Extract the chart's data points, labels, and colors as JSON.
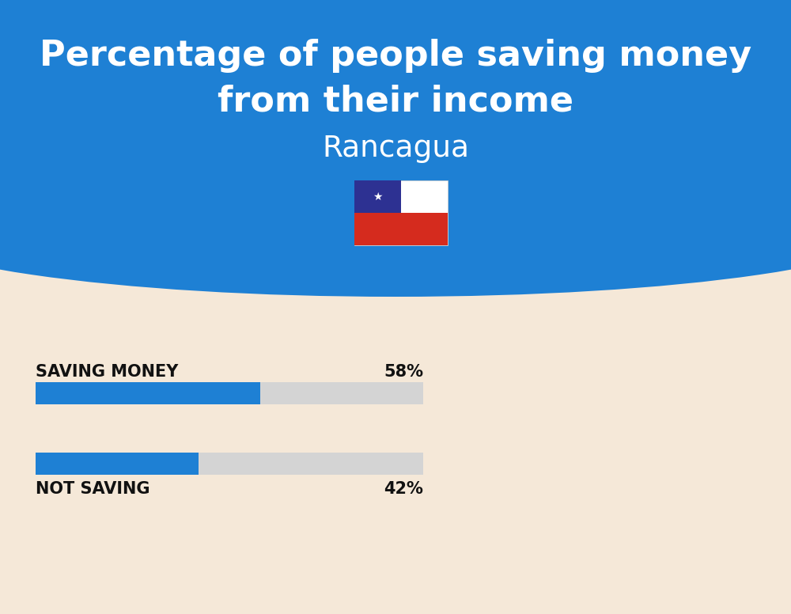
{
  "title_line1": "Percentage of people saving money",
  "title_line2": "from their income",
  "subtitle": "Rancagua",
  "background_color": "#f5e8d8",
  "header_color": "#1e80d4",
  "bar_color": "#1e80d4",
  "bar_bg_color": "#d4d4d4",
  "label1": "SAVING MONEY",
  "value1": 58,
  "label1_text": "58%",
  "label2": "NOT SAVING",
  "value2": 42,
  "label2_text": "42%",
  "bar_max": 100,
  "text_color": "#111111",
  "title_color": "#ffffff",
  "subtitle_color": "#ffffff",
  "fig_width": 10.0,
  "fig_height": 7.76
}
